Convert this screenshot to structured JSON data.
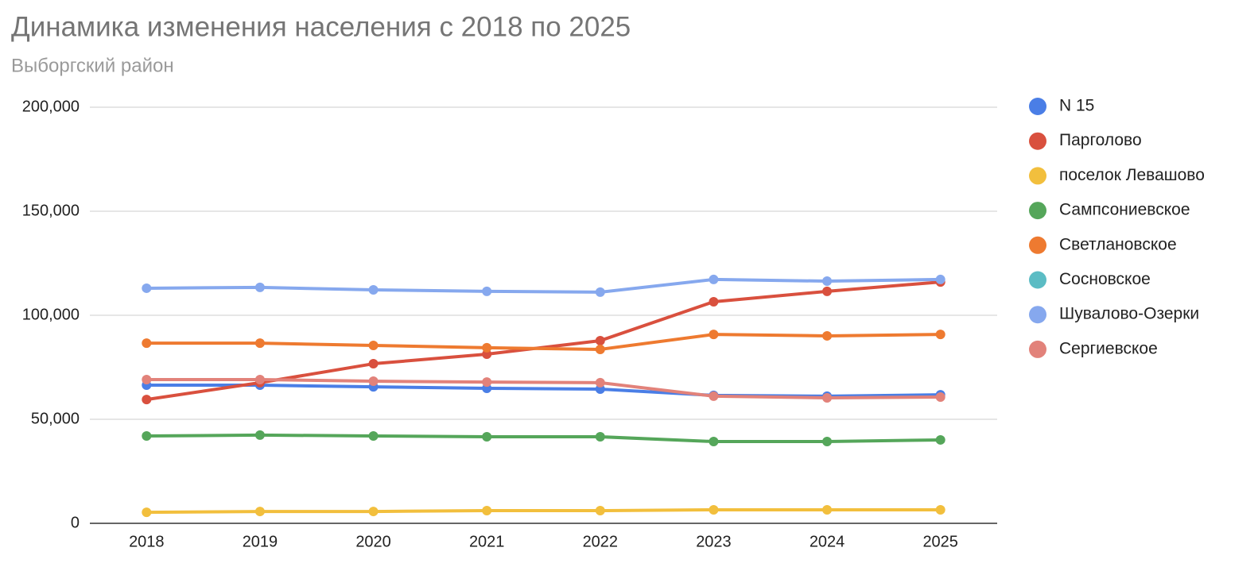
{
  "chart_data": {
    "type": "line",
    "title": "Динамика изменения населения с 2018 по 2025",
    "subtitle": "Выборгский район",
    "categories": [
      "2018",
      "2019",
      "2020",
      "2021",
      "2022",
      "2023",
      "2024",
      "2025"
    ],
    "ylim": [
      0,
      200000
    ],
    "yticks": [
      0,
      {
        "value": 50000,
        "label": "50,000"
      },
      {
        "value": 100000,
        "label": "100,000"
      },
      {
        "value": 150000,
        "label": "150,000"
      },
      {
        "value": 200000,
        "label": "200,000"
      }
    ],
    "grid": true,
    "legend": "right",
    "series": [
      {
        "name": "N 15",
        "color": "#4a7ee6",
        "values": [
          66400,
          66400,
          65600,
          64900,
          64500,
          61500,
          61100,
          61800
        ]
      },
      {
        "name": "Парголово",
        "color": "#d9503e",
        "values": [
          59500,
          67600,
          76700,
          81300,
          87800,
          106500,
          111500,
          116000
        ]
      },
      {
        "name": "поселок Левашово",
        "color": "#f2bf3d",
        "values": [
          5300,
          5700,
          5700,
          6100,
          6100,
          6500,
          6500,
          6500
        ]
      },
      {
        "name": "Сампсониевское",
        "color": "#55a65a",
        "values": [
          42000,
          42400,
          42000,
          41600,
          41600,
          39300,
          39300,
          40100
        ]
      },
      {
        "name": "Светлановское",
        "color": "#ee7a30",
        "values": [
          86600,
          86600,
          85500,
          84400,
          83600,
          90800,
          90100,
          90800
        ]
      },
      {
        "name": "Сосновское",
        "color": "#5bbcc4",
        "values": [
          null,
          null,
          null,
          null,
          null,
          null,
          null,
          null
        ]
      },
      {
        "name": "Шувалово-Озерки",
        "color": "#86a8ee",
        "values": [
          113000,
          113400,
          112200,
          111500,
          111100,
          117200,
          116400,
          117200
        ]
      },
      {
        "name": "Сергиевское",
        "color": "#e2827a",
        "values": [
          69100,
          69100,
          68300,
          67900,
          67600,
          61100,
          60300,
          60700
        ]
      }
    ]
  }
}
